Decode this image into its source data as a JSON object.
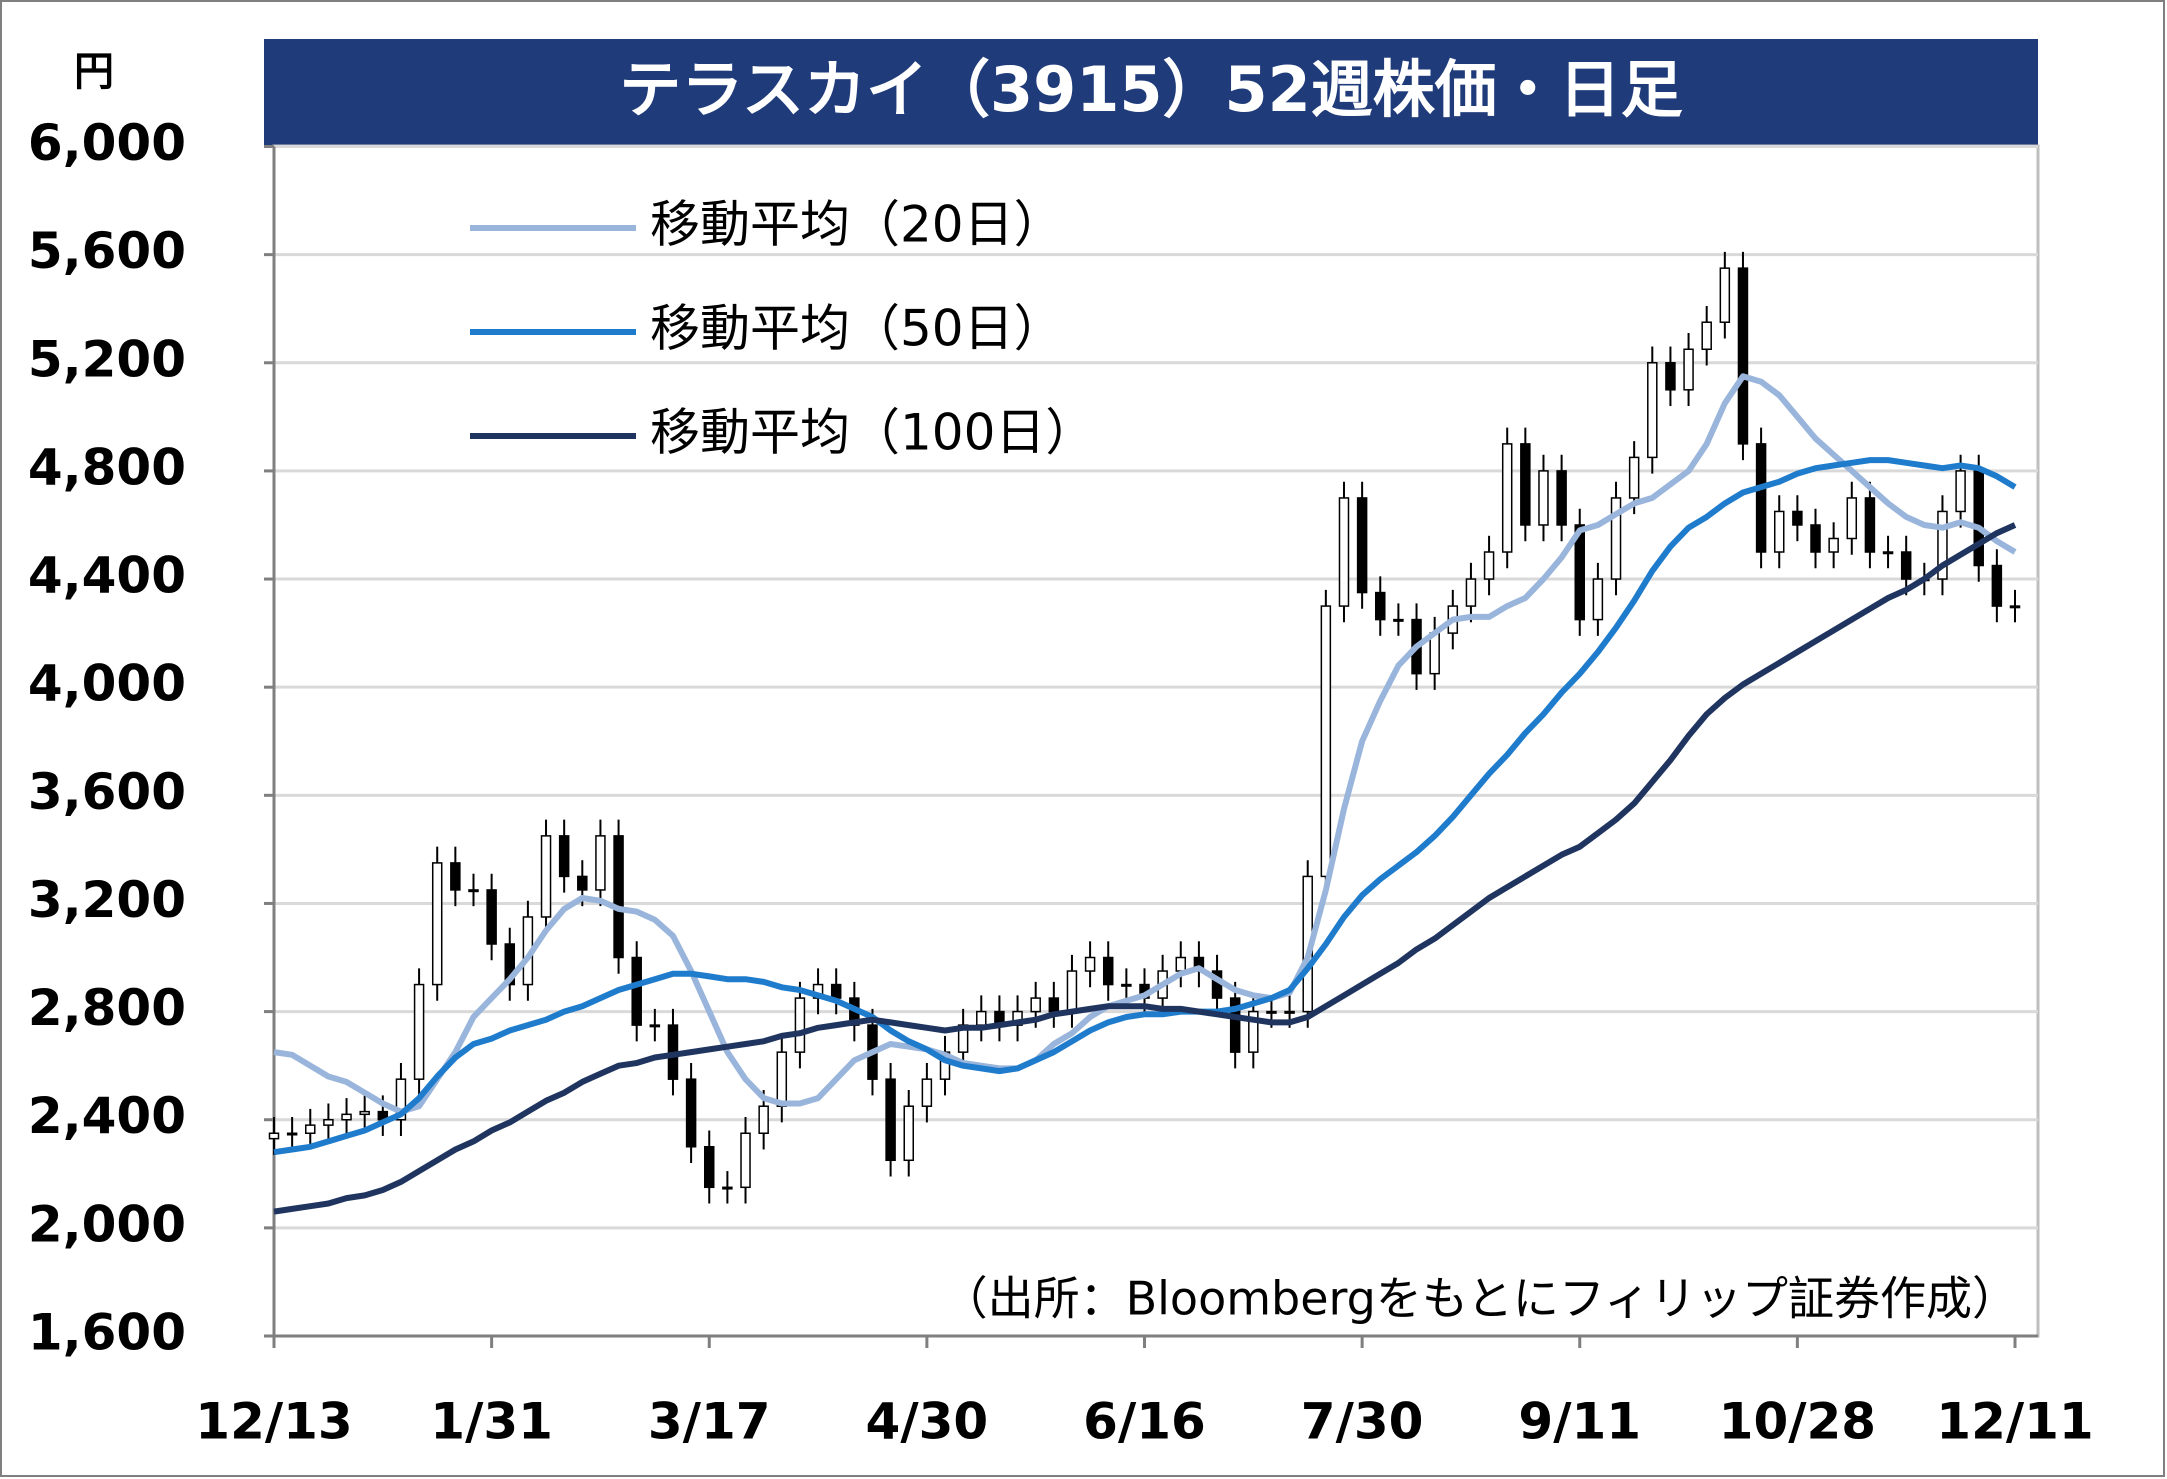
{
  "chart_data": {
    "type": "candlestick",
    "title": "テラスカイ（3915）52週株価・日足",
    "y_unit": "円",
    "note": "（出所：Bloombergをもとにフィリップ証券作成）",
    "categories": [
      "12/13",
      null,
      null,
      null,
      null,
      null,
      null,
      null,
      null,
      null,
      null,
      null,
      "1/31",
      null,
      null,
      null,
      null,
      null,
      null,
      null,
      null,
      null,
      null,
      null,
      "3/17",
      null,
      null,
      null,
      null,
      null,
      null,
      null,
      null,
      null,
      null,
      null,
      "4/30",
      null,
      null,
      null,
      null,
      null,
      null,
      null,
      null,
      null,
      null,
      null,
      "6/16",
      null,
      null,
      null,
      null,
      null,
      null,
      null,
      null,
      null,
      null,
      null,
      "7/30",
      null,
      null,
      null,
      null,
      null,
      null,
      null,
      null,
      null,
      null,
      null,
      "9/11",
      null,
      null,
      null,
      null,
      null,
      null,
      null,
      null,
      null,
      null,
      null,
      "10/28",
      null,
      null,
      null,
      null,
      null,
      null,
      null,
      null,
      null,
      null,
      null,
      "12/11"
    ],
    "open": [
      2330,
      2350,
      2350,
      2380,
      2400,
      2420,
      2430,
      2400,
      2550,
      2900,
      3350,
      3250,
      3250,
      3050,
      2900,
      3150,
      3450,
      3300,
      3250,
      3450,
      3000,
      2750,
      2750,
      2550,
      2300,
      2150,
      2150,
      2350,
      2450,
      2650,
      2850,
      2900,
      2850,
      2750,
      2550,
      2250,
      2450,
      2550,
      2650,
      2750,
      2800,
      2750,
      2800,
      2850,
      2800,
      2950,
      3000,
      2900,
      2900,
      2850,
      2950,
      3000,
      2950,
      2850,
      2650,
      2800,
      2800,
      2800,
      3300,
      4300,
      4700,
      4350,
      4250,
      4250,
      4050,
      4200,
      4300,
      4400,
      4500,
      4900,
      4600,
      4800,
      4600,
      4250,
      4400,
      4700,
      4850,
      5200,
      5100,
      5250,
      5350,
      5550,
      4900,
      4500,
      4650,
      4600,
      4500,
      4550,
      4700,
      4500,
      4500,
      4400,
      4400,
      4650,
      4800,
      4450,
      4300
    ],
    "high": [
      2410,
      2410,
      2440,
      2460,
      2480,
      2490,
      2490,
      2610,
      2960,
      3410,
      3410,
      3310,
      3310,
      3110,
      3210,
      3510,
      3510,
      3360,
      3510,
      3510,
      3060,
      2810,
      2810,
      2610,
      2360,
      2210,
      2410,
      2510,
      2710,
      2910,
      2960,
      2960,
      2910,
      2810,
      2610,
      2510,
      2610,
      2710,
      2810,
      2860,
      2860,
      2860,
      2910,
      2910,
      3010,
      3060,
      3060,
      2960,
      2960,
      3010,
      3060,
      3060,
      3010,
      2910,
      2860,
      2860,
      2860,
      3360,
      4360,
      4760,
      4760,
      4410,
      4310,
      4310,
      4260,
      4360,
      4460,
      4560,
      4960,
      4960,
      4860,
      4860,
      4660,
      4460,
      4760,
      4910,
      5260,
      5260,
      5310,
      5410,
      5610,
      5610,
      4960,
      4710,
      4710,
      4660,
      4610,
      4760,
      4760,
      4560,
      4560,
      4460,
      4710,
      4860,
      4860,
      4510,
      4360
    ],
    "low": [
      2270,
      2290,
      2290,
      2320,
      2340,
      2360,
      2340,
      2340,
      2490,
      2840,
      3190,
      3190,
      2990,
      2840,
      2840,
      3090,
      3240,
      3190,
      3190,
      2940,
      2690,
      2690,
      2490,
      2240,
      2090,
      2090,
      2090,
      2290,
      2390,
      2590,
      2790,
      2790,
      2690,
      2490,
      2190,
      2190,
      2390,
      2490,
      2590,
      2690,
      2690,
      2690,
      2740,
      2740,
      2740,
      2890,
      2840,
      2840,
      2790,
      2790,
      2890,
      2890,
      2790,
      2590,
      2590,
      2740,
      2740,
      2740,
      3240,
      4240,
      4290,
      4190,
      4190,
      3990,
      3990,
      4140,
      4240,
      4340,
      4440,
      4540,
      4540,
      4540,
      4190,
      4190,
      4340,
      4640,
      4790,
      5040,
      5040,
      5190,
      5290,
      4840,
      4440,
      4440,
      4540,
      4440,
      4440,
      4490,
      4440,
      4440,
      4340,
      4340,
      4340,
      4590,
      4390,
      4240,
      4240
    ],
    "close": [
      2350,
      2350,
      2380,
      2400,
      2420,
      2430,
      2400,
      2550,
      2900,
      3350,
      3250,
      3250,
      3050,
      2900,
      3150,
      3450,
      3300,
      3250,
      3450,
      3000,
      2750,
      2750,
      2550,
      2300,
      2150,
      2150,
      2350,
      2450,
      2650,
      2850,
      2900,
      2850,
      2750,
      2550,
      2250,
      2450,
      2550,
      2650,
      2750,
      2800,
      2750,
      2800,
      2850,
      2800,
      2950,
      3000,
      2900,
      2900,
      2850,
      2950,
      3000,
      2950,
      2850,
      2650,
      2800,
      2800,
      2800,
      3300,
      4300,
      4700,
      4350,
      4250,
      4250,
      4050,
      4200,
      4300,
      4400,
      4500,
      4900,
      4600,
      4800,
      4600,
      4250,
      4400,
      4700,
      4850,
      5200,
      5100,
      5250,
      5350,
      5550,
      4900,
      4500,
      4650,
      4600,
      4500,
      4550,
      4700,
      4500,
      4500,
      4400,
      4400,
      4650,
      4800,
      4450,
      4300,
      4300
    ],
    "up_color": "#ffffff",
    "down_color": "#000000",
    "series": [
      {
        "name": "移動平均（20日）",
        "color": "#9ab5db",
        "values": [
          2650,
          2640,
          2600,
          2560,
          2540,
          2500,
          2460,
          2430,
          2450,
          2550,
          2650,
          2780,
          2850,
          2920,
          3000,
          3100,
          3180,
          3220,
          3210,
          3180,
          3170,
          3140,
          3080,
          2950,
          2800,
          2650,
          2550,
          2480,
          2460,
          2460,
          2480,
          2550,
          2620,
          2650,
          2680,
          2670,
          2660,
          2640,
          2610,
          2600,
          2590,
          2590,
          2620,
          2680,
          2720,
          2780,
          2820,
          2840,
          2860,
          2900,
          2940,
          2960,
          2920,
          2880,
          2860,
          2850,
          2870,
          3000,
          3250,
          3550,
          3800,
          3950,
          4080,
          4150,
          4200,
          4250,
          4260,
          4260,
          4300,
          4330,
          4400,
          4480,
          4580,
          4600,
          4640,
          4680,
          4700,
          4750,
          4800,
          4900,
          5050,
          5150,
          5130,
          5080,
          5000,
          4920,
          4860,
          4800,
          4740,
          4680,
          4630,
          4600,
          4590,
          4610,
          4590,
          4540,
          4500
        ]
      },
      {
        "name": "移動平均（50日）",
        "color": "#1f7ccc",
        "values": [
          2280,
          2290,
          2300,
          2320,
          2340,
          2360,
          2390,
          2420,
          2480,
          2560,
          2630,
          2680,
          2700,
          2730,
          2750,
          2770,
          2800,
          2820,
          2850,
          2880,
          2900,
          2920,
          2940,
          2940,
          2930,
          2920,
          2920,
          2910,
          2890,
          2880,
          2860,
          2840,
          2810,
          2780,
          2730,
          2690,
          2660,
          2620,
          2600,
          2590,
          2580,
          2590,
          2620,
          2650,
          2690,
          2730,
          2760,
          2780,
          2790,
          2790,
          2800,
          2800,
          2800,
          2810,
          2830,
          2850,
          2880,
          2960,
          3050,
          3150,
          3230,
          3290,
          3340,
          3390,
          3450,
          3520,
          3600,
          3680,
          3750,
          3830,
          3900,
          3980,
          4050,
          4130,
          4220,
          4320,
          4430,
          4520,
          4590,
          4630,
          4680,
          4720,
          4740,
          4760,
          4790,
          4810,
          4820,
          4830,
          4840,
          4840,
          4830,
          4820,
          4810,
          4820,
          4810,
          4780,
          4740
        ]
      },
      {
        "name": "移動平均（100日）",
        "color": "#1f3560",
        "values": [
          2060,
          2070,
          2080,
          2090,
          2110,
          2120,
          2140,
          2170,
          2210,
          2250,
          2290,
          2320,
          2360,
          2390,
          2430,
          2470,
          2500,
          2540,
          2570,
          2600,
          2610,
          2630,
          2640,
          2650,
          2660,
          2670,
          2680,
          2690,
          2710,
          2720,
          2740,
          2750,
          2760,
          2770,
          2760,
          2750,
          2740,
          2730,
          2740,
          2740,
          2750,
          2760,
          2770,
          2790,
          2800,
          2810,
          2820,
          2820,
          2820,
          2810,
          2810,
          2800,
          2790,
          2780,
          2770,
          2760,
          2760,
          2780,
          2820,
          2860,
          2900,
          2940,
          2980,
          3030,
          3070,
          3120,
          3170,
          3220,
          3260,
          3300,
          3340,
          3380,
          3410,
          3460,
          3510,
          3570,
          3650,
          3730,
          3820,
          3900,
          3960,
          4010,
          4050,
          4090,
          4130,
          4170,
          4210,
          4250,
          4290,
          4330,
          4360,
          4400,
          4450,
          4490,
          4530,
          4570,
          4600
        ]
      }
    ],
    "ylim": [
      1600,
      6000
    ],
    "yticks": [
      {
        "value": 1600,
        "label": "1,600"
      },
      {
        "value": 2000,
        "label": "2,000"
      },
      {
        "value": 2400,
        "label": "2,400"
      },
      {
        "value": 2800,
        "label": "2,800"
      },
      {
        "value": 3200,
        "label": "3,200"
      },
      {
        "value": 3600,
        "label": "3,600"
      },
      {
        "value": 4000,
        "label": "4,000"
      },
      {
        "value": 4400,
        "label": "4,400"
      },
      {
        "value": 4800,
        "label": "4,800"
      },
      {
        "value": 5200,
        "label": "5,200"
      },
      {
        "value": 5600,
        "label": "5,600"
      },
      {
        "value": 6000,
        "label": "6,000"
      }
    ],
    "grid": true
  }
}
